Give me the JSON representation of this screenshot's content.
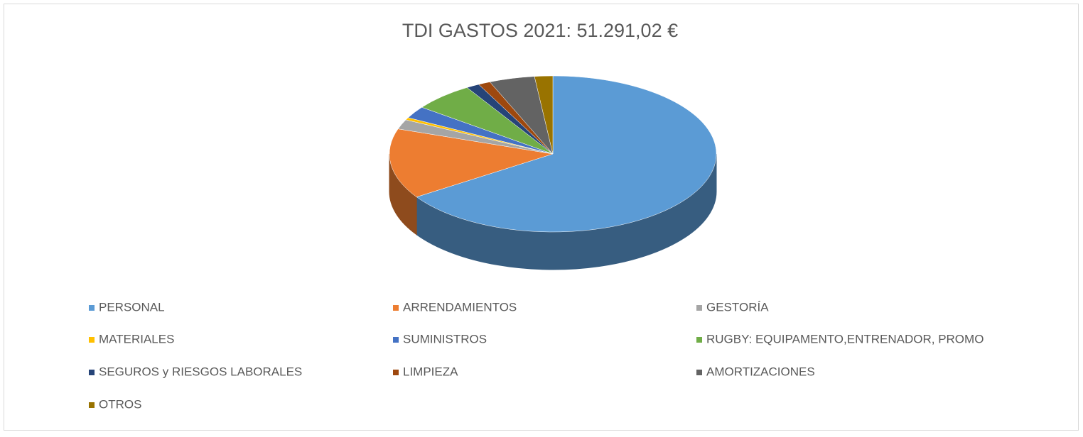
{
  "chart_data": {
    "type": "pie3d",
    "title": "TDI GASTOS 2021: 51.291,02 €",
    "categories": [
      "PERSONAL",
      "ARRENDAMIENTOS",
      "GESTORÍA",
      "MATERIALES",
      "SUMINISTROS",
      "RUGBY: EQUIPAMENTO,ENTRENADOR, PROMO",
      "SEGUROS y RIESGOS LABORALES",
      "LIMPIEZA",
      "AMORTIZACIONES",
      "OTROS"
    ],
    "values": [
      65.7,
      14.5,
      2,
      0.5,
      2.5,
      6,
      1.3,
      1.2,
      4.5,
      1.8
    ],
    "colors": [
      "#5b9bd5",
      "#ed7d31",
      "#a5a5a5",
      "#ffc000",
      "#4472c4",
      "#70ad47",
      "#264478",
      "#9e480e",
      "#636363",
      "#997300"
    ],
    "legend": "bottom"
  }
}
